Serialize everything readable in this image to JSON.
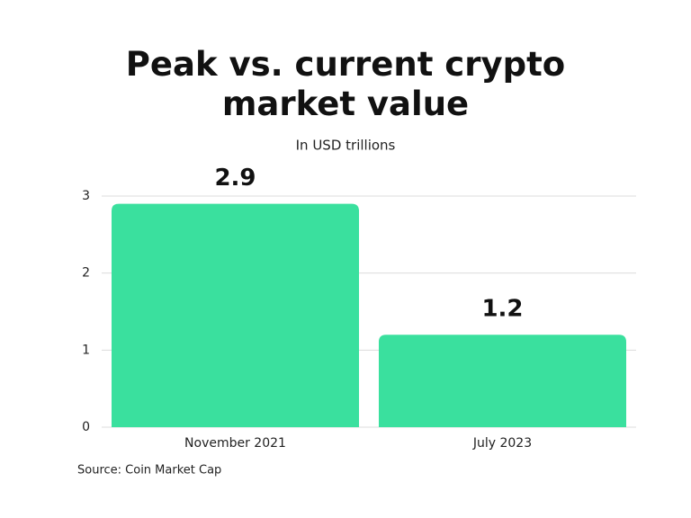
{
  "chart_data": {
    "type": "bar",
    "title": "Peak vs. current crypto market value",
    "subtitle": "In USD trillions",
    "source": "Source: Coin Market Cap",
    "categories": [
      "November 2021",
      "July 2023"
    ],
    "values": [
      2.9,
      1.2
    ],
    "color": "#3ae09e",
    "ylim": [
      0,
      3
    ],
    "yticks": [
      0,
      1,
      2,
      3
    ],
    "grid": true
  }
}
